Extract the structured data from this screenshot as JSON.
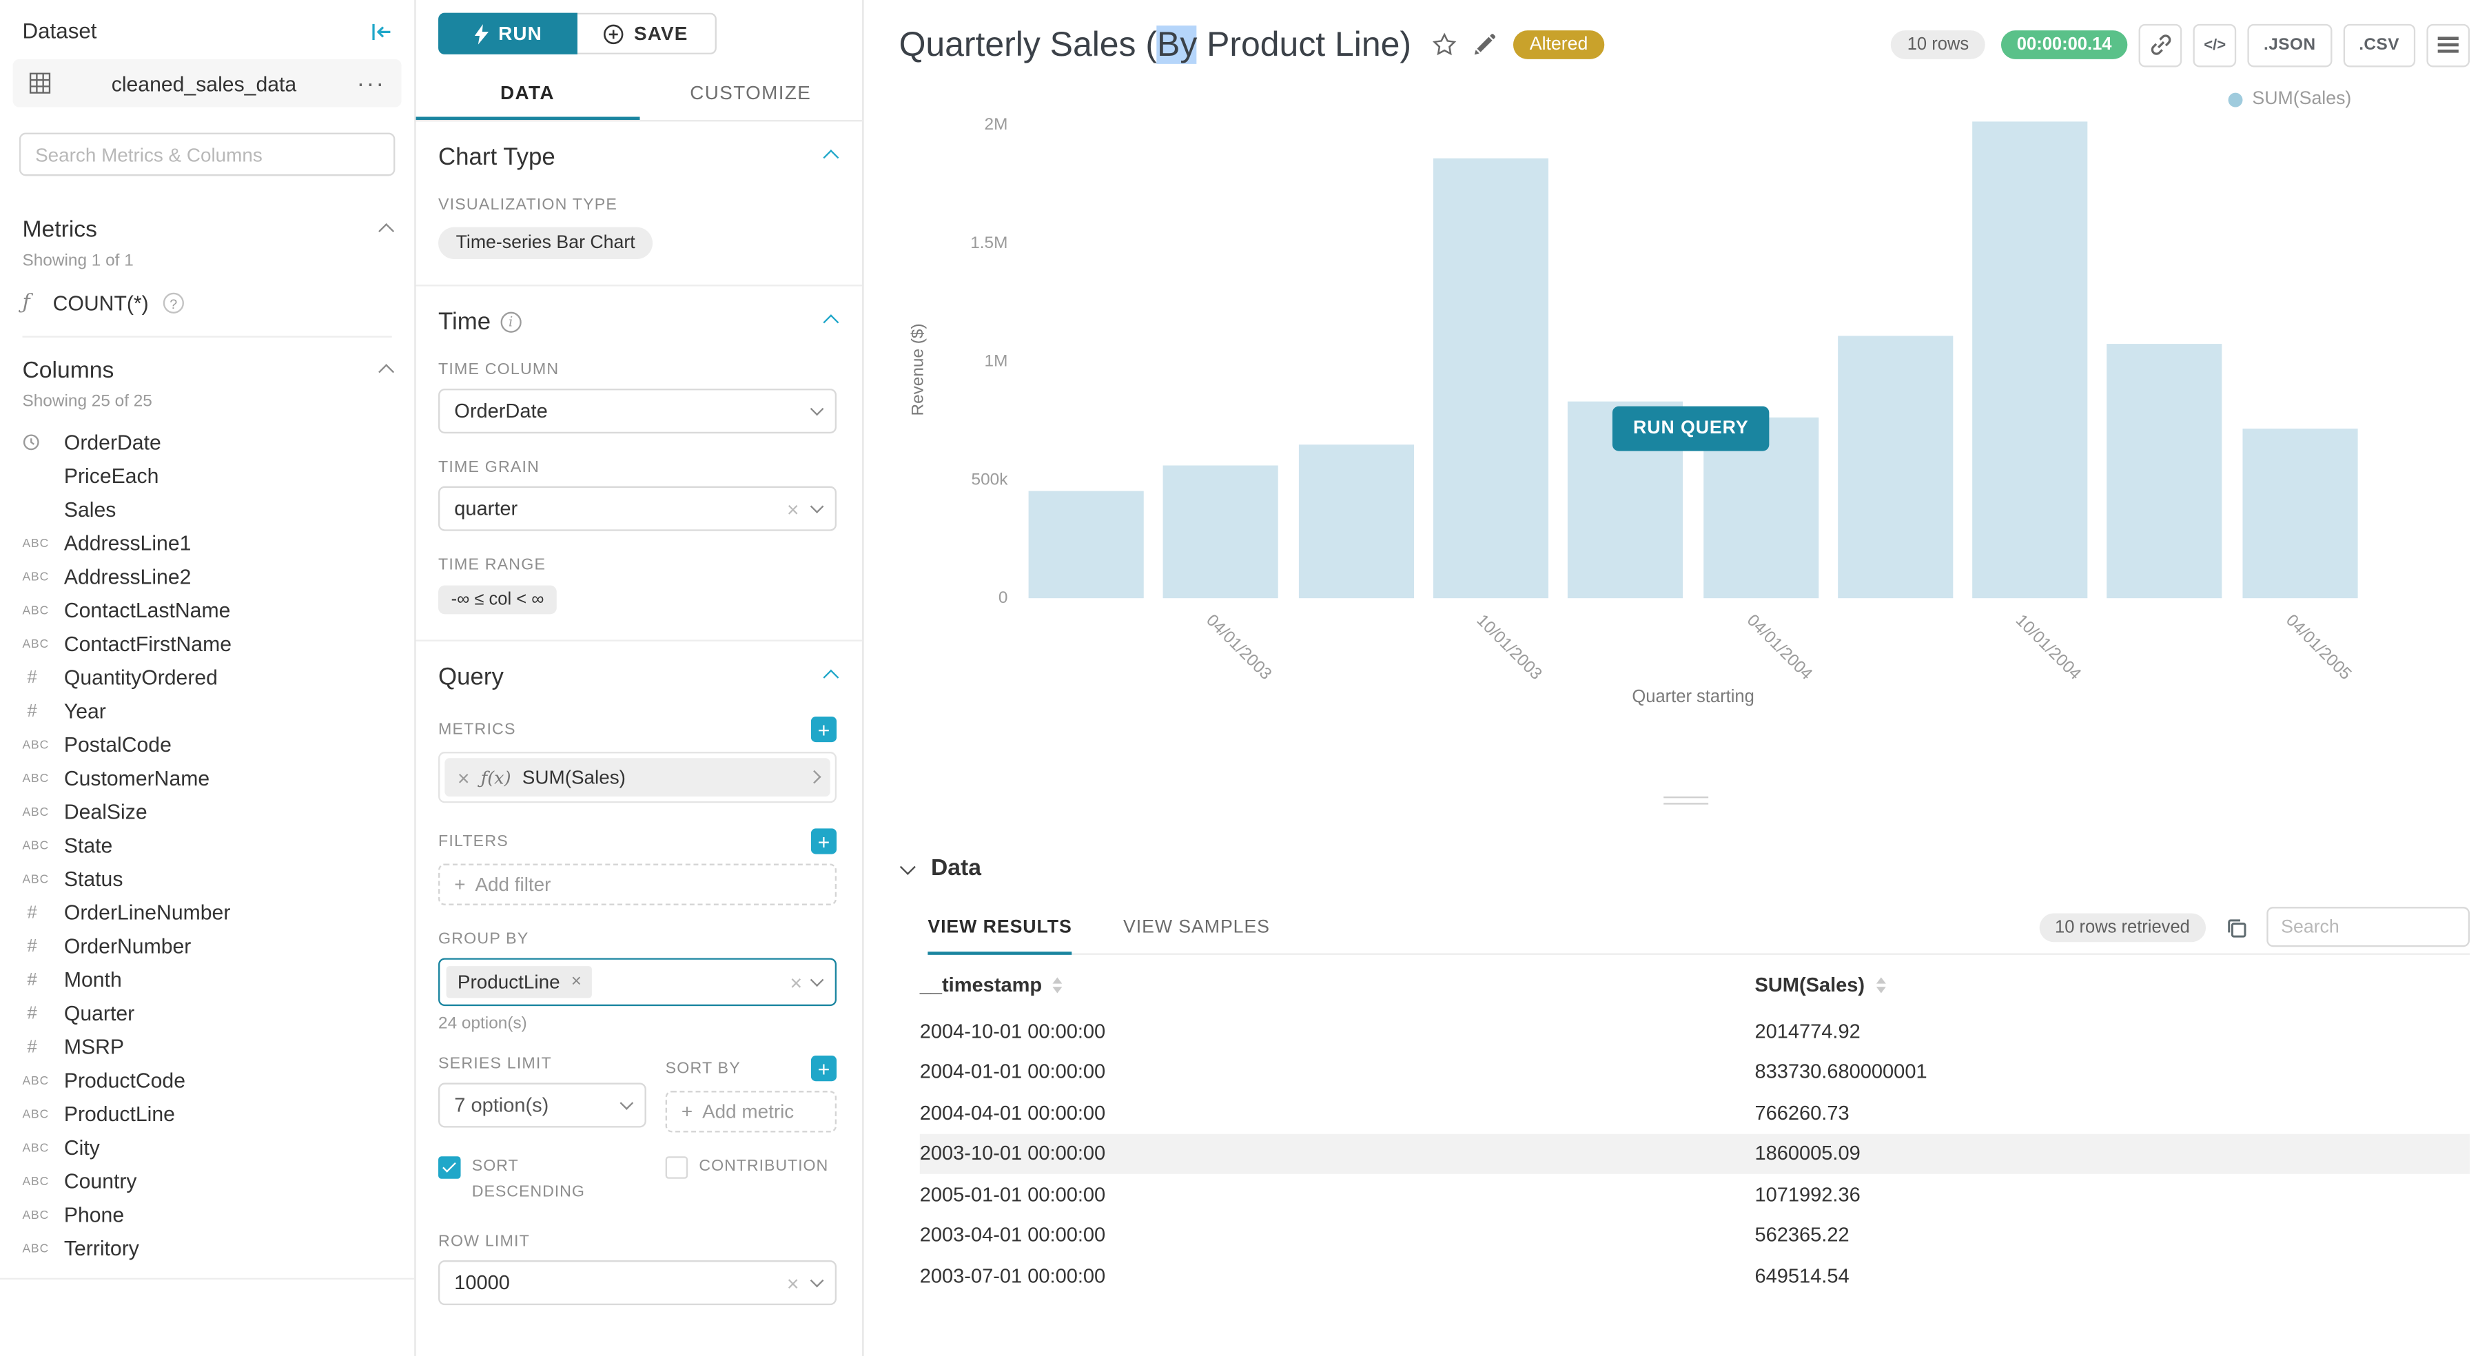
{
  "dataset_panel": {
    "title": "Dataset",
    "dataset_name": "cleaned_sales_data",
    "search_placeholder": "Search Metrics & Columns",
    "metrics_header": "Metrics",
    "metrics_count": "Showing 1 of 1",
    "metric_name": "COUNT(*)",
    "columns_header": "Columns",
    "columns_count": "Showing 25 of 25",
    "columns": [
      {
        "name": "OrderDate",
        "type": "time"
      },
      {
        "name": "PriceEach",
        "type": "none"
      },
      {
        "name": "Sales",
        "type": "none"
      },
      {
        "name": "AddressLine1",
        "type": "text"
      },
      {
        "name": "AddressLine2",
        "type": "text"
      },
      {
        "name": "ContactLastName",
        "type": "text"
      },
      {
        "name": "ContactFirstName",
        "type": "text"
      },
      {
        "name": "QuantityOrdered",
        "type": "num"
      },
      {
        "name": "Year",
        "type": "num"
      },
      {
        "name": "PostalCode",
        "type": "text"
      },
      {
        "name": "CustomerName",
        "type": "text"
      },
      {
        "name": "DealSize",
        "type": "text"
      },
      {
        "name": "State",
        "type": "text"
      },
      {
        "name": "Status",
        "type": "text"
      },
      {
        "name": "OrderLineNumber",
        "type": "num"
      },
      {
        "name": "OrderNumber",
        "type": "num"
      },
      {
        "name": "Month",
        "type": "num"
      },
      {
        "name": "Quarter",
        "type": "num"
      },
      {
        "name": "MSRP",
        "type": "num"
      },
      {
        "name": "ProductCode",
        "type": "text"
      },
      {
        "name": "ProductLine",
        "type": "text"
      },
      {
        "name": "City",
        "type": "text"
      },
      {
        "name": "Country",
        "type": "text"
      },
      {
        "name": "Phone",
        "type": "text"
      },
      {
        "name": "Territory",
        "type": "text"
      }
    ]
  },
  "controls": {
    "run_label": "RUN",
    "save_label": "SAVE",
    "tabs": [
      "DATA",
      "CUSTOMIZE"
    ],
    "active_tab_index": 0,
    "chart_type_header": "Chart Type",
    "visualization_type_label": "VISUALIZATION TYPE",
    "visualization_type": "Time-series Bar Chart",
    "time_header": "Time",
    "time_column_label": "TIME COLUMN",
    "time_column": "OrderDate",
    "time_grain_label": "TIME GRAIN",
    "time_grain": "quarter",
    "time_range_label": "TIME RANGE",
    "time_range": "-∞ ≤ col < ∞",
    "query_header": "Query",
    "metrics_label": "METRICS",
    "metric_pill": "SUM(Sales)",
    "filters_label": "FILTERS",
    "add_filter_label": "Add filter",
    "group_by_label": "GROUP BY",
    "group_by_value": "ProductLine",
    "group_by_options": "24 option(s)",
    "series_limit_label": "SERIES LIMIT",
    "series_limit_value": "7 option(s)",
    "sort_by_label": "SORT BY",
    "add_metric_label": "Add metric",
    "sort_descending_label": "SORT DESCENDING",
    "sort_descending_checked": true,
    "contribution_label": "CONTRIBUTION",
    "contribution_checked": false,
    "row_limit_label": "ROW LIMIT",
    "row_limit_value": "10000"
  },
  "header": {
    "title_pre": "Quarterly Sales (",
    "title_highlight": "By",
    "title_post": " Product Line)",
    "altered_badge": "Altered",
    "rows_badge": "10 rows",
    "timer_badge": "00:00:00.14",
    "json_button": ".JSON",
    "csv_button": ".CSV"
  },
  "chart_ui": {
    "run_query_label": "RUN QUERY"
  },
  "chart_data": {
    "type": "bar",
    "title": "Quarterly Sales (By Product Line)",
    "legend": [
      "SUM(Sales)"
    ],
    "legend_position": "top-right",
    "grid": false,
    "x": [
      "2003-01-01",
      "2003-04-01",
      "2003-07-01",
      "2003-10-01",
      "2004-01-01",
      "2004-04-01",
      "2004-07-01",
      "2004-10-01",
      "2005-01-01",
      "2005-04-01"
    ],
    "values": [
      450000,
      562365.22,
      649514.54,
      1860005.09,
      833730.68,
      766260.73,
      1110000,
      2014774.92,
      1071992.36,
      715000
    ],
    "xlabel": "Quarter starting",
    "ylabel": "Revenue ($)",
    "ylim": [
      0,
      2000000
    ],
    "yticks": [
      {
        "v": 0,
        "label": "0"
      },
      {
        "v": 500000,
        "label": "500k"
      },
      {
        "v": 1000000,
        "label": "1M"
      },
      {
        "v": 1500000,
        "label": "1.5M"
      },
      {
        "v": 2000000,
        "label": "2M"
      }
    ],
    "xticks": [
      {
        "index": 1,
        "label": "04/01/2003"
      },
      {
        "index": 3,
        "label": "10/01/2003"
      },
      {
        "index": 5,
        "label": "04/01/2004"
      },
      {
        "index": 7,
        "label": "10/01/2004"
      },
      {
        "index": 9,
        "label": "04/01/2005"
      }
    ],
    "bar_color": "#cfe4ee"
  },
  "data_panel": {
    "header": "Data",
    "tabs": [
      "VIEW RESULTS",
      "VIEW SAMPLES"
    ],
    "active_tab_index": 0,
    "rows_retrieved": "10 rows retrieved",
    "search_placeholder": "Search",
    "table": {
      "columns": [
        "__timestamp",
        "SUM(Sales)"
      ],
      "rows": [
        [
          "2004-10-01 00:00:00",
          "2014774.92"
        ],
        [
          "2004-01-01 00:00:00",
          "833730.680000001"
        ],
        [
          "2004-04-01 00:00:00",
          "766260.73"
        ],
        [
          "2003-10-01 00:00:00",
          "1860005.09"
        ],
        [
          "2005-01-01 00:00:00",
          "1071992.36"
        ],
        [
          "2003-04-01 00:00:00",
          "562365.22"
        ],
        [
          "2003-07-01 00:00:00",
          "649514.54"
        ]
      ],
      "highlighted_row": 3
    }
  },
  "colors": {
    "accent": "#20a7c9",
    "primary_button": "#1a85a0",
    "altered_badge": "#c9a22b",
    "timer_badge": "#5ac189",
    "bar": "#cfe4ee",
    "selection_highlight": "#b5d5fa"
  }
}
